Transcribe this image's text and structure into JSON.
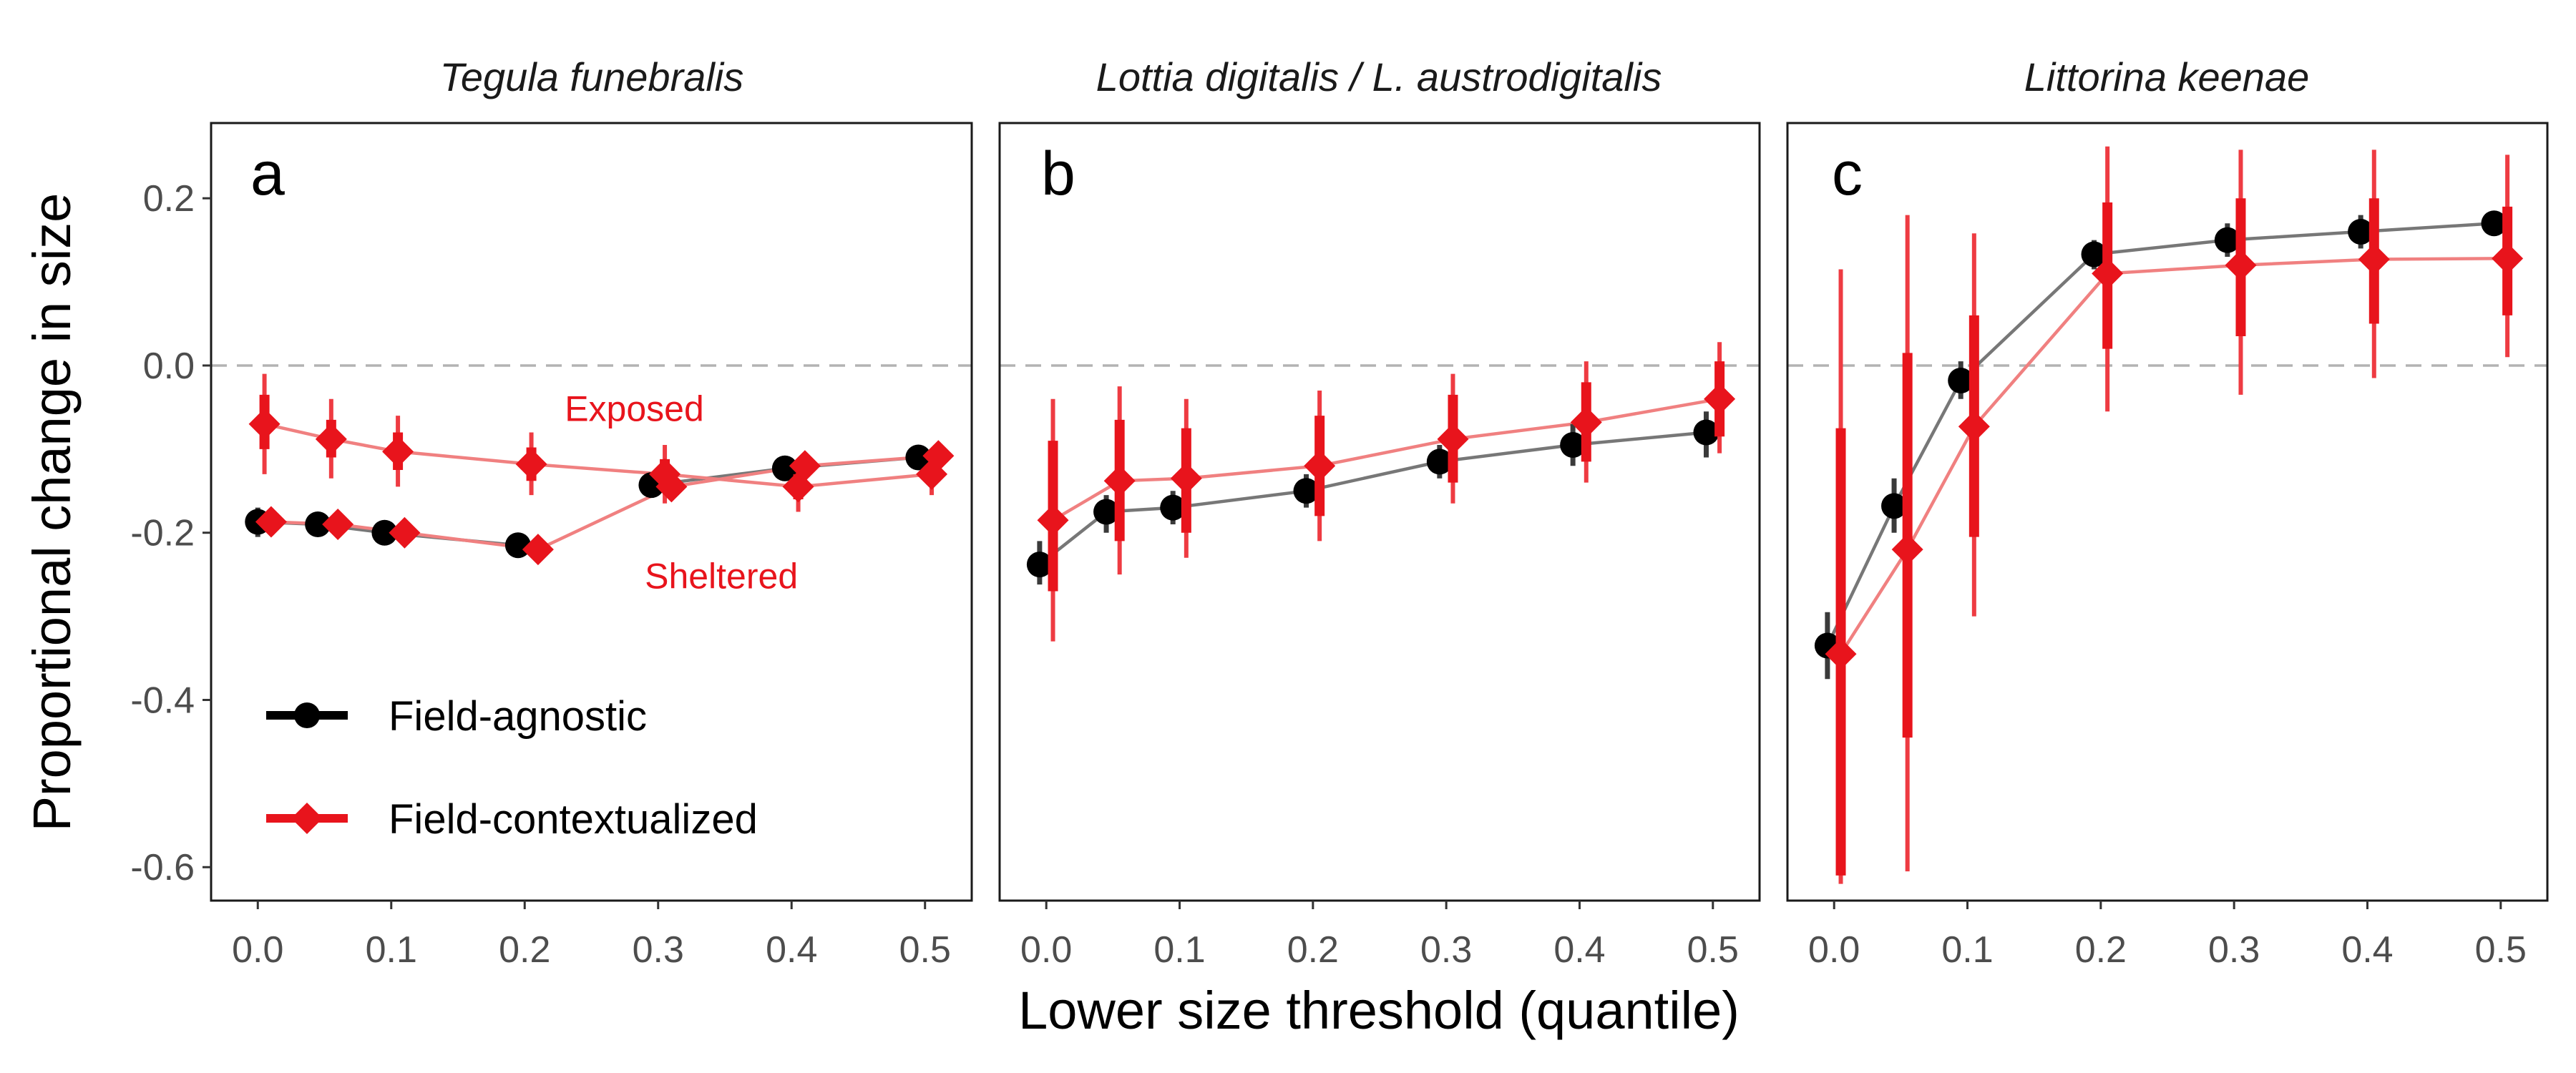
{
  "chart_data": {
    "type": "scatter",
    "xlabel": "Lower size threshold (quantile)",
    "ylabel": "Proportional change in size",
    "xlim": [
      -0.035,
      0.535
    ],
    "ylim": [
      -0.64,
      0.29
    ],
    "x_ticks": [
      "0.0",
      "0.1",
      "0.2",
      "0.3",
      "0.4",
      "0.5"
    ],
    "y_ticks": [
      "0.2",
      "0.0",
      "-0.2",
      "-0.4",
      "-0.6"
    ],
    "reference_line": 0,
    "grid": false,
    "colors": {
      "agnostic": "#000000",
      "contextualized": "#e8141c",
      "agnostic_line": "#777777",
      "contextualized_line": "#f08080",
      "reference": "#b3b3b3"
    },
    "legend": {
      "placement": "bottom-left of panel a",
      "entries": [
        {
          "label": "Field-agnostic",
          "marker": "circle",
          "color": "#000000"
        },
        {
          "label": "Field-contextualized",
          "marker": "diamond",
          "color": "#e8141c"
        }
      ]
    },
    "panels": [
      {
        "letter": "a",
        "title": "Tegula funebralis",
        "annotations": [
          {
            "text": "Exposed",
            "x": 0.23,
            "y": -0.052
          },
          {
            "text": "Sheltered",
            "x": 0.29,
            "y": -0.252
          }
        ],
        "series": [
          {
            "kind": "agnostic",
            "group": "Sheltered",
            "points": [
              {
                "x": 0.0,
                "y": -0.187,
                "lo": -0.205,
                "hi": -0.17
              },
              {
                "x": 0.045,
                "y": -0.19,
                "lo": -0.2,
                "hi": -0.18
              },
              {
                "x": 0.095,
                "y": -0.2,
                "lo": -0.21,
                "hi": -0.19
              },
              {
                "x": 0.195,
                "y": -0.215,
                "lo": -0.225,
                "hi": -0.205
              }
            ]
          },
          {
            "kind": "agnostic",
            "group": "Exposed",
            "points": [
              {
                "x": 0.295,
                "y": -0.143,
                "lo": -0.155,
                "hi": -0.13
              },
              {
                "x": 0.395,
                "y": -0.123,
                "lo": -0.135,
                "hi": -0.11
              },
              {
                "x": 0.495,
                "y": -0.11,
                "lo": -0.12,
                "hi": -0.1
              }
            ]
          },
          {
            "kind": "contextualized",
            "group": "Exposed",
            "points": [
              {
                "x": 0.005,
                "y": -0.07,
                "lo": -0.13,
                "hi": -0.01,
                "inner_lo": -0.1,
                "inner_hi": -0.035
              },
              {
                "x": 0.055,
                "y": -0.088,
                "lo": -0.135,
                "hi": -0.04,
                "inner_lo": -0.11,
                "inner_hi": -0.065
              },
              {
                "x": 0.105,
                "y": -0.103,
                "lo": -0.145,
                "hi": -0.06,
                "inner_lo": -0.125,
                "inner_hi": -0.08
              },
              {
                "x": 0.205,
                "y": -0.118,
                "lo": -0.155,
                "hi": -0.08,
                "inner_lo": -0.138,
                "inner_hi": -0.098
              },
              {
                "x": 0.305,
                "y": -0.13,
                "lo": -0.165,
                "hi": -0.095,
                "inner_lo": -0.148,
                "inner_hi": -0.112
              },
              {
                "x": 0.405,
                "y": -0.145,
                "lo": -0.175,
                "hi": -0.115,
                "inner_lo": -0.16,
                "inner_hi": -0.13
              },
              {
                "x": 0.505,
                "y": -0.13,
                "lo": -0.155,
                "hi": -0.105,
                "inner_lo": -0.142,
                "inner_hi": -0.118
              }
            ]
          },
          {
            "kind": "contextualized",
            "group": "Sheltered",
            "points": [
              {
                "x": 0.01,
                "y": -0.187,
                "lo": -0.2,
                "hi": -0.174,
                "inner_lo": -0.194,
                "inner_hi": -0.18
              },
              {
                "x": 0.06,
                "y": -0.19,
                "lo": -0.2,
                "hi": -0.18,
                "inner_lo": -0.195,
                "inner_hi": -0.185
              },
              {
                "x": 0.11,
                "y": -0.2,
                "lo": -0.21,
                "hi": -0.19,
                "inner_lo": -0.205,
                "inner_hi": -0.195
              },
              {
                "x": 0.21,
                "y": -0.22,
                "lo": -0.23,
                "hi": -0.21,
                "inner_lo": -0.225,
                "inner_hi": -0.215
              },
              {
                "x": 0.31,
                "y": -0.145,
                "lo": -0.16,
                "hi": -0.13,
                "inner_lo": -0.152,
                "inner_hi": -0.138
              },
              {
                "x": 0.41,
                "y": -0.12,
                "lo": -0.132,
                "hi": -0.108,
                "inner_lo": -0.126,
                "inner_hi": -0.114
              },
              {
                "x": 0.51,
                "y": -0.108,
                "lo": -0.118,
                "hi": -0.098,
                "inner_lo": -0.113,
                "inner_hi": -0.103
              }
            ]
          }
        ]
      },
      {
        "letter": "b",
        "title": "Lottia digitalis / L. austrodigitalis",
        "annotations": [],
        "series": [
          {
            "kind": "agnostic",
            "points": [
              {
                "x": -0.005,
                "y": -0.238,
                "lo": -0.262,
                "hi": -0.21
              },
              {
                "x": 0.045,
                "y": -0.175,
                "lo": -0.2,
                "hi": -0.155
              },
              {
                "x": 0.095,
                "y": -0.17,
                "lo": -0.19,
                "hi": -0.15
              },
              {
                "x": 0.195,
                "y": -0.15,
                "lo": -0.17,
                "hi": -0.13
              },
              {
                "x": 0.295,
                "y": -0.115,
                "lo": -0.135,
                "hi": -0.095
              },
              {
                "x": 0.395,
                "y": -0.095,
                "lo": -0.12,
                "hi": -0.07
              },
              {
                "x": 0.495,
                "y": -0.08,
                "lo": -0.11,
                "hi": -0.055
              }
            ]
          },
          {
            "kind": "contextualized",
            "points": [
              {
                "x": 0.005,
                "y": -0.185,
                "lo": -0.33,
                "hi": -0.04,
                "inner_lo": -0.27,
                "inner_hi": -0.09
              },
              {
                "x": 0.055,
                "y": -0.138,
                "lo": -0.25,
                "hi": -0.025,
                "inner_lo": -0.21,
                "inner_hi": -0.065
              },
              {
                "x": 0.105,
                "y": -0.135,
                "lo": -0.23,
                "hi": -0.04,
                "inner_lo": -0.2,
                "inner_hi": -0.075
              },
              {
                "x": 0.205,
                "y": -0.12,
                "lo": -0.21,
                "hi": -0.03,
                "inner_lo": -0.18,
                "inner_hi": -0.06
              },
              {
                "x": 0.305,
                "y": -0.088,
                "lo": -0.165,
                "hi": -0.01,
                "inner_lo": -0.14,
                "inner_hi": -0.035
              },
              {
                "x": 0.405,
                "y": -0.068,
                "lo": -0.14,
                "hi": 0.005,
                "inner_lo": -0.115,
                "inner_hi": -0.02
              },
              {
                "x": 0.505,
                "y": -0.04,
                "lo": -0.105,
                "hi": 0.028,
                "inner_lo": -0.085,
                "inner_hi": 0.005
              }
            ]
          }
        ]
      },
      {
        "letter": "c",
        "title": "Littorina keenae",
        "annotations": [],
        "series": [
          {
            "kind": "agnostic",
            "points": [
              {
                "x": -0.005,
                "y": -0.335,
                "lo": -0.375,
                "hi": -0.295
              },
              {
                "x": 0.045,
                "y": -0.168,
                "lo": -0.2,
                "hi": -0.135
              },
              {
                "x": 0.095,
                "y": -0.018,
                "lo": -0.04,
                "hi": 0.005
              },
              {
                "x": 0.195,
                "y": 0.133,
                "lo": 0.115,
                "hi": 0.15
              },
              {
                "x": 0.295,
                "y": 0.15,
                "lo": 0.13,
                "hi": 0.17
              },
              {
                "x": 0.395,
                "y": 0.16,
                "lo": 0.14,
                "hi": 0.18
              },
              {
                "x": 0.495,
                "y": 0.17,
                "lo": 0.155,
                "hi": 0.185
              }
            ]
          },
          {
            "kind": "contextualized",
            "points": [
              {
                "x": 0.005,
                "y": -0.345,
                "lo": -0.62,
                "hi": 0.115,
                "inner_lo": -0.61,
                "inner_hi": -0.075
              },
              {
                "x": 0.055,
                "y": -0.22,
                "lo": -0.605,
                "hi": 0.18,
                "inner_lo": -0.445,
                "inner_hi": 0.015
              },
              {
                "x": 0.105,
                "y": -0.073,
                "lo": -0.3,
                "hi": 0.158,
                "inner_lo": -0.205,
                "inner_hi": 0.06
              },
              {
                "x": 0.205,
                "y": 0.11,
                "lo": -0.055,
                "hi": 0.262,
                "inner_lo": 0.02,
                "inner_hi": 0.195
              },
              {
                "x": 0.305,
                "y": 0.12,
                "lo": -0.035,
                "hi": 0.258,
                "inner_lo": 0.035,
                "inner_hi": 0.2
              },
              {
                "x": 0.405,
                "y": 0.127,
                "lo": -0.015,
                "hi": 0.258,
                "inner_lo": 0.05,
                "inner_hi": 0.2
              },
              {
                "x": 0.505,
                "y": 0.128,
                "lo": 0.01,
                "hi": 0.252,
                "inner_lo": 0.06,
                "inner_hi": 0.19
              }
            ]
          }
        ]
      }
    ]
  }
}
